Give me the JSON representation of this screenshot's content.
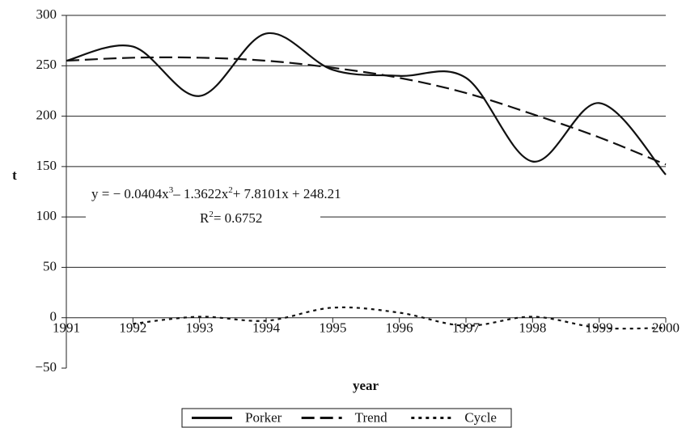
{
  "chart_data": {
    "type": "line",
    "y_label": "t",
    "x_label": "year",
    "x": [
      1991,
      1992,
      1993,
      1994,
      1995,
      1996,
      1997,
      1998,
      1999,
      2000
    ],
    "series": [
      {
        "name": "Porker",
        "color": "#111111",
        "dash": "solid",
        "values": [
          255,
          269,
          220,
          282,
          246,
          240,
          238,
          155,
          213,
          142
        ]
      },
      {
        "name": "Trend",
        "color": "#111111",
        "dash": "long",
        "values": [
          255,
          258,
          258,
          255,
          248,
          238,
          223,
          202,
          179,
          152
        ]
      },
      {
        "name": "Cycle",
        "color": "#111111",
        "dash": "short",
        "values": [
          null,
          -6,
          1,
          -3,
          10,
          5,
          -8,
          1,
          -10,
          -10
        ]
      }
    ],
    "xlim": [
      1991,
      2000
    ],
    "xticks": [
      1991,
      1992,
      1993,
      1994,
      1995,
      1996,
      1997,
      1998,
      1999,
      2000
    ],
    "ylim": [
      -50,
      300
    ],
    "yticks": [
      {
        "value": -50,
        "label": "−50"
      },
      0,
      50,
      100,
      150,
      200,
      250,
      300
    ],
    "grid": true,
    "legend": "bottom",
    "equation": [
      "y = − 0.0404x",
      "3",
      "– 1.3622x",
      "2",
      "+ 7.8101x + 248.21"
    ],
    "r_squared": [
      "R",
      "2",
      "= 0.6752"
    ]
  }
}
